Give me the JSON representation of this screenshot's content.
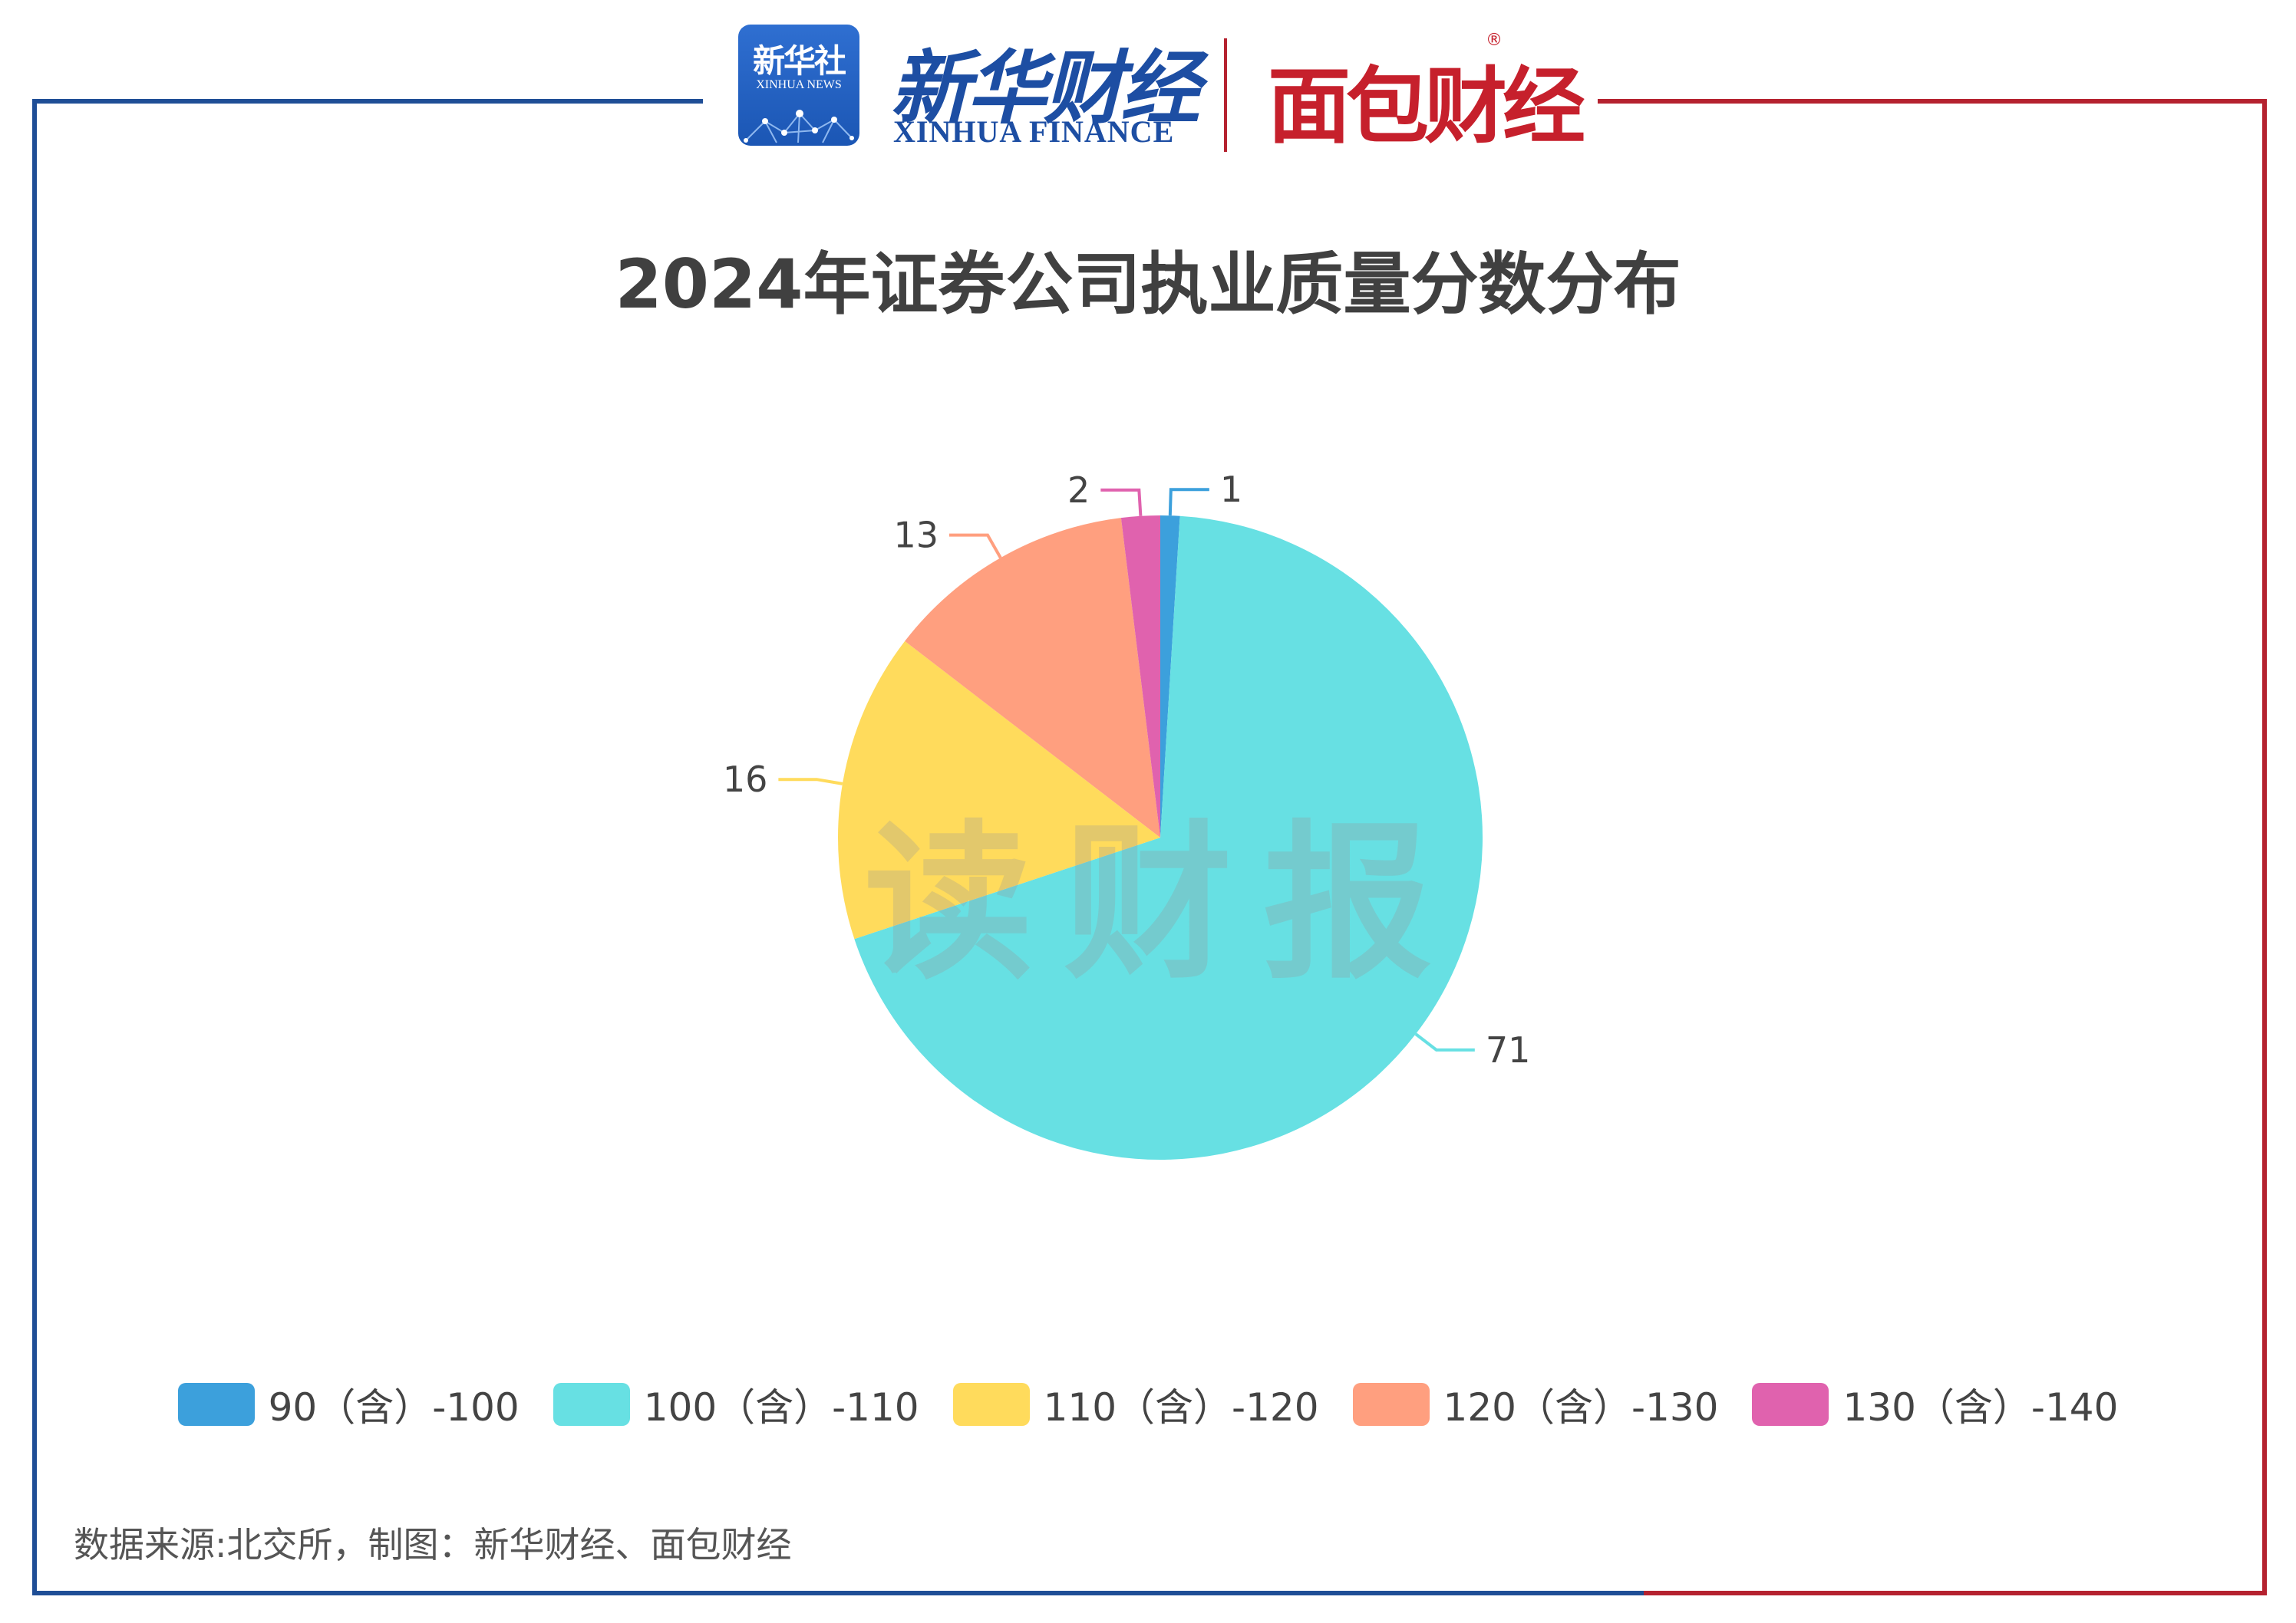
{
  "header": {
    "logo_xinhua_cn": "新华社",
    "logo_xinhua_en": "XINHUA NEWS",
    "finance_cn": "新华财经",
    "finance_en": "XINHUA FINANCE",
    "partner": "面包财经",
    "registered_mark": "®"
  },
  "watermark": "读财报",
  "colors": {
    "frame_left": "#1f4e96",
    "frame_right": "#b5222f"
  },
  "chart_data": {
    "type": "pie",
    "title": "2024年证券公司执业质量分数分布",
    "categories": [
      "90（含）-100",
      "100（含）-110",
      "110（含）-120",
      "120（含）-130",
      "130（含）-140"
    ],
    "values": [
      1,
      71,
      16,
      13,
      2
    ],
    "colors": [
      "#3ca0dc",
      "#67e0e3",
      "#ffdb5c",
      "#ff9f7f",
      "#e062ae"
    ],
    "legend": "bottom",
    "data_labels": true
  },
  "source": "数据来源:北交所，制图：新华财经、面包财经"
}
